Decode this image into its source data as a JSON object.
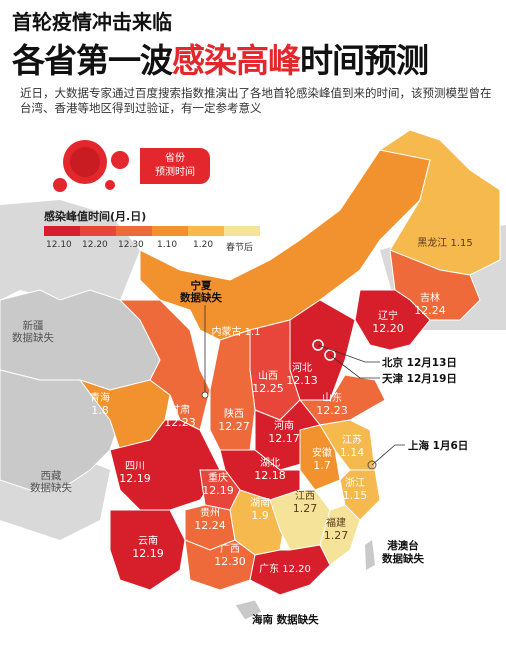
{
  "header": {
    "kicker": "首轮疫情冲击来临",
    "title_pre": "各省第一波",
    "title_red": "感染高峰",
    "title_post": "时间预测",
    "intro": "近日，大数据专家通过百度搜索指数推演出了各地首轮感染峰值到来的时间，该预测模型曾在台湾、香港等地区得到过验证，有一定参考意义"
  },
  "badge": {
    "line1": "省份",
    "line2": "预测时间"
  },
  "legend": {
    "title": "感染峰值时间(月.日)",
    "items": [
      {
        "label": "12.10",
        "color": "#d71e2b"
      },
      {
        "label": "12.20",
        "color": "#e8463a"
      },
      {
        "label": "12.30",
        "color": "#ef6a3a"
      },
      {
        "label": "1.10",
        "color": "#f2922e"
      },
      {
        "label": "1.20",
        "color": "#f6b94d"
      },
      {
        "label": "春节后",
        "color": "#f5e39a"
      }
    ]
  },
  "provinces": {
    "heilongjiang": {
      "name": "黑龙江",
      "value": "1.15"
    },
    "jilin": {
      "name": "吉林",
      "value": "12.24"
    },
    "liaoning": {
      "name": "辽宁",
      "value": "12.20"
    },
    "neimenggu": {
      "name": "内蒙古",
      "value": "1.1"
    },
    "hebei": {
      "name": "河北",
      "value": "12.13"
    },
    "shanxi": {
      "name": "山西",
      "value": "12.25"
    },
    "shandong": {
      "name": "山东",
      "value": "12.23"
    },
    "shaanxi": {
      "name": "陕西",
      "value": "12.27"
    },
    "gansu": {
      "name": "甘肃",
      "value": "12.23"
    },
    "qinghai": {
      "name": "青海",
      "value": "1.8"
    },
    "henan": {
      "name": "河南",
      "value": "12.17"
    },
    "jiangsu": {
      "name": "江苏",
      "value": "1.14"
    },
    "anhui": {
      "name": "安徽",
      "value": "1.7"
    },
    "hubei": {
      "name": "湖北",
      "value": "12.18"
    },
    "sichuan": {
      "name": "四川",
      "value": "12.19"
    },
    "chongqing": {
      "name": "重庆",
      "value": "12.19"
    },
    "guizhou": {
      "name": "贵州",
      "value": "12.24"
    },
    "hunan": {
      "name": "湖南",
      "value": "1.9"
    },
    "jiangxi": {
      "name": "江西",
      "value": "1.27"
    },
    "zhejiang": {
      "name": "浙江",
      "value": "1.15"
    },
    "fujian": {
      "name": "福建",
      "value": "1.27"
    },
    "yunnan": {
      "name": "云南",
      "value": "12.19"
    },
    "guangxi": {
      "name": "广西",
      "value": "12.30"
    },
    "guangdong": {
      "name": "广东",
      "value": "12.20"
    }
  },
  "callouts": {
    "beijing": "北京 12月13日",
    "tianjin": "天津 12月19日",
    "shanghai": "上海 1月6日",
    "ningxia_1": "宁夏",
    "ningxia_2": "数据缺失",
    "xinjiang_1": "新疆",
    "xinjiang_2": "数据缺失",
    "xizang_1": "西藏",
    "xizang_2": "数据缺失",
    "gangaotai_1": "港澳台",
    "gangaotai_2": "数据缺失",
    "hainan": "海南 数据缺失"
  }
}
